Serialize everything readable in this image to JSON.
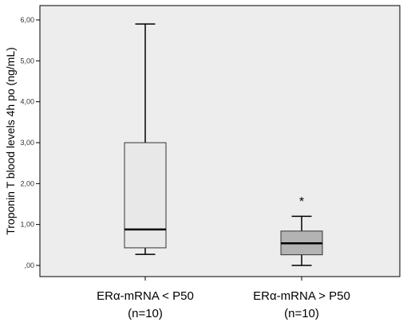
{
  "chart_data": {
    "type": "box",
    "title": "",
    "xlabel": "",
    "ylabel": "Troponin T blood levels 4h po (ng/mL)",
    "ylim": [
      0,
      6.2
    ],
    "yticks": [
      0,
      1,
      2,
      3,
      4,
      5,
      6
    ],
    "ytick_labels": [
      ",00",
      "1,00",
      "2,00",
      "3,00",
      "4,00",
      "5,00",
      "6,00"
    ],
    "grid": false,
    "plot_background": "#ededed",
    "categories": [
      {
        "line1": "ERα-mRNA < P50",
        "line2": "(n=10)"
      },
      {
        "line1": "ERα-mRNA > P50",
        "line2": "(n=10)"
      }
    ],
    "boxes": [
      {
        "min": 0.27,
        "q1": 0.43,
        "median": 0.88,
        "q3": 3.0,
        "max": 5.9,
        "fill": "#e8e8e8",
        "outliers": []
      },
      {
        "min": 0.0,
        "q1": 0.26,
        "median": 0.54,
        "q3": 0.84,
        "max": 1.2,
        "fill": "#b3b3b3",
        "outliers": [
          {
            "value": 1.62,
            "symbol": "*"
          }
        ]
      }
    ]
  }
}
